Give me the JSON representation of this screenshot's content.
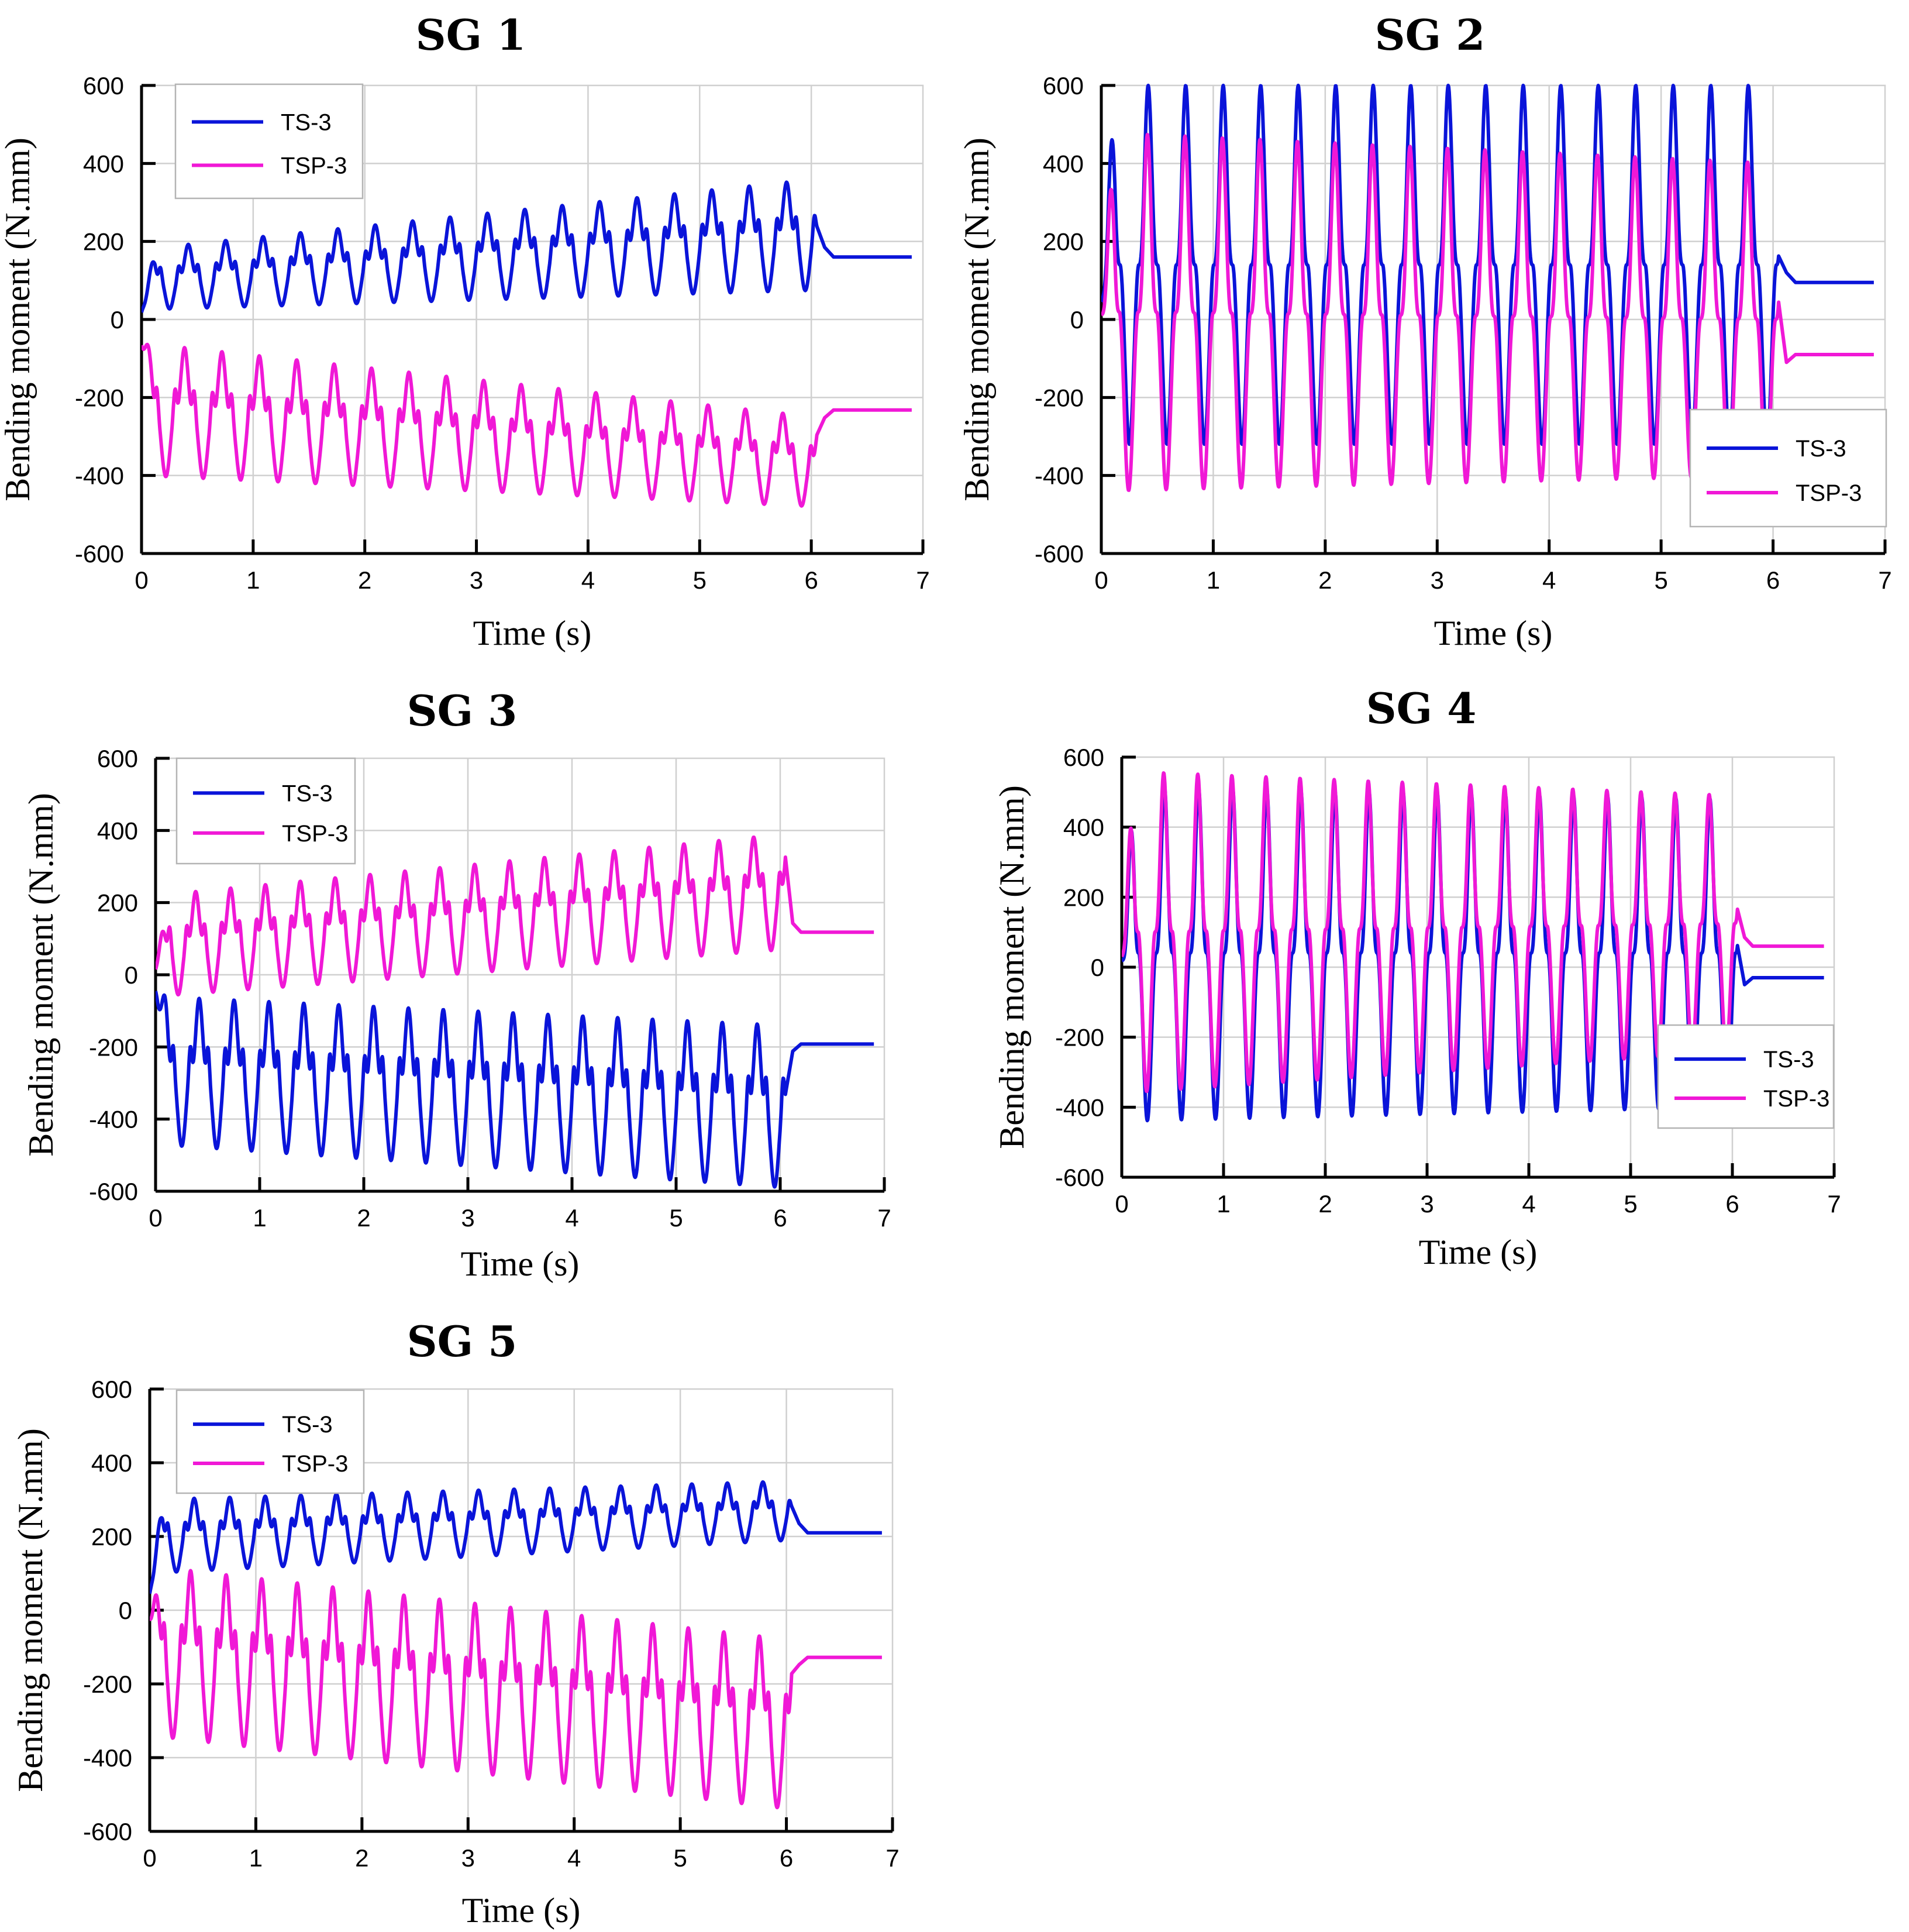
{
  "colors": {
    "ts": "#0a14d9",
    "tsp": "#f018d6"
  },
  "chart_data": [
    {
      "type": "line",
      "title": "SG 1",
      "xlabel": "Time (s)",
      "ylabel": "Bending moment (N.mm)",
      "xlim": [
        0,
        7
      ],
      "ylim": [
        -600,
        600
      ],
      "xticks": [
        "0",
        "1",
        "2",
        "3",
        "4",
        "5",
        "6",
        "7"
      ],
      "yticks": [
        "600",
        "400",
        "200",
        "0",
        "-200",
        "-400",
        "-600"
      ],
      "legend_position": "top-left",
      "series": [
        {
          "name": "TS-3",
          "color": "#0a14d9",
          "mean_start": 60,
          "mean_end": 95,
          "peak_start": 180,
          "peak_end": 360,
          "trough_start": 25,
          "trough_end": 75,
          "final": 160,
          "phase": 0.0,
          "doublet": true
        },
        {
          "name": "TSP-3",
          "color": "#f018d6",
          "mean_start": -220,
          "mean_end": -340,
          "peak_start": -60,
          "peak_end": -250,
          "trough_start": -400,
          "trough_end": -480,
          "final": -232,
          "phase": 0.1,
          "doublet": true
        }
      ]
    },
    {
      "type": "line",
      "title": "SG 2",
      "xlabel": "Time (s)",
      "ylabel": "Bending moment (N.mm)",
      "xlim": [
        0,
        7
      ],
      "ylim": [
        -600,
        600
      ],
      "xticks": [
        "0",
        "1",
        "2",
        "3",
        "4",
        "5",
        "6",
        "7"
      ],
      "yticks": [
        "600",
        "400",
        "200",
        "0",
        "-200",
        "-400",
        "-600"
      ],
      "legend_position": "bottom-right",
      "series": [
        {
          "name": "TS-3",
          "color": "#0a14d9",
          "mean_start": 150,
          "mean_end": 150,
          "peak_start": 600,
          "peak_end": 600,
          "trough_start": -320,
          "trough_end": -320,
          "final": 95,
          "phase": 0.0,
          "doublet": false
        },
        {
          "name": "TSP-3",
          "color": "#f018d6",
          "mean_start": 40,
          "mean_end": 0,
          "peak_start": 480,
          "peak_end": 400,
          "trough_start": -440,
          "trough_end": -400,
          "final": -90,
          "phase": 0.02,
          "doublet": false
        }
      ]
    },
    {
      "type": "line",
      "title": "SG 3",
      "xlabel": "Time (s)",
      "ylabel": "Bending moment (N.mm)",
      "xlim": [
        0,
        7
      ],
      "ylim": [
        -600,
        600
      ],
      "xticks": [
        "0",
        "1",
        "2",
        "3",
        "4",
        "5",
        "6",
        "7"
      ],
      "yticks": [
        "600",
        "400",
        "200",
        "0",
        "-200",
        "-400",
        "-600"
      ],
      "legend_position": "top-left",
      "series": [
        {
          "name": "TS-3",
          "color": "#0a14d9",
          "mean_start": -150,
          "mean_end": -180,
          "peak_start": -60,
          "peak_end": -140,
          "trough_start": -470,
          "trough_end": -590,
          "final": -192,
          "phase": 0.0,
          "doublet": true
        },
        {
          "name": "TSP-3",
          "color": "#f018d6",
          "mean_start": 50,
          "mean_end": 160,
          "peak_start": 220,
          "peak_end": 390,
          "trough_start": -60,
          "trough_end": 70,
          "final": 118,
          "phase": 0.1,
          "doublet": true
        }
      ]
    },
    {
      "type": "line",
      "title": "SG 4",
      "xlabel": "Time (s)",
      "ylabel": "Bending moment (N.mm)",
      "xlim": [
        0,
        7
      ],
      "ylim": [
        -600,
        600
      ],
      "xticks": [
        "0",
        "1",
        "2",
        "3",
        "4",
        "5",
        "6",
        "7"
      ],
      "yticks": [
        "600",
        "400",
        "200",
        "0",
        "-200",
        "-400",
        "-600"
      ],
      "legend_position": "bottom-right",
      "series": [
        {
          "name": "TS-3",
          "color": "#0a14d9",
          "mean_start": 60,
          "mean_end": 40,
          "peak_start": 520,
          "peak_end": 480,
          "trough_start": -440,
          "trough_end": -400,
          "final": -30,
          "phase": 0.0,
          "doublet": false
        },
        {
          "name": "TSP-3",
          "color": "#f018d6",
          "mean_start": 100,
          "mean_end": 100,
          "peak_start": 560,
          "peak_end": 490,
          "trough_start": -360,
          "trough_end": -240,
          "final": 60,
          "phase": 0.02,
          "doublet": false
        }
      ]
    },
    {
      "type": "line",
      "title": "SG 5",
      "xlabel": "Time (s)",
      "ylabel": "Bending moment (N.mm)",
      "xlim": [
        0,
        7
      ],
      "ylim": [
        -600,
        600
      ],
      "xticks": [
        "0",
        "1",
        "2",
        "3",
        "4",
        "5",
        "6",
        "7"
      ],
      "yticks": [
        "600",
        "400",
        "200",
        "0",
        "-200",
        "-400",
        "-600"
      ],
      "legend_position": "top-left",
      "series": [
        {
          "name": "TS-3",
          "color": "#0a14d9",
          "mean_start": 150,
          "mean_end": 230,
          "peak_start": 300,
          "peak_end": 350,
          "trough_start": 100,
          "trough_end": 190,
          "final": 210,
          "phase": 0.0,
          "doublet": true
        },
        {
          "name": "TSP-3",
          "color": "#f018d6",
          "mean_start": -80,
          "mean_end": -250,
          "peak_start": 120,
          "peak_end": -80,
          "trough_start": -340,
          "trough_end": -540,
          "final": -128,
          "phase": 0.1,
          "doublet": true
        }
      ]
    }
  ]
}
